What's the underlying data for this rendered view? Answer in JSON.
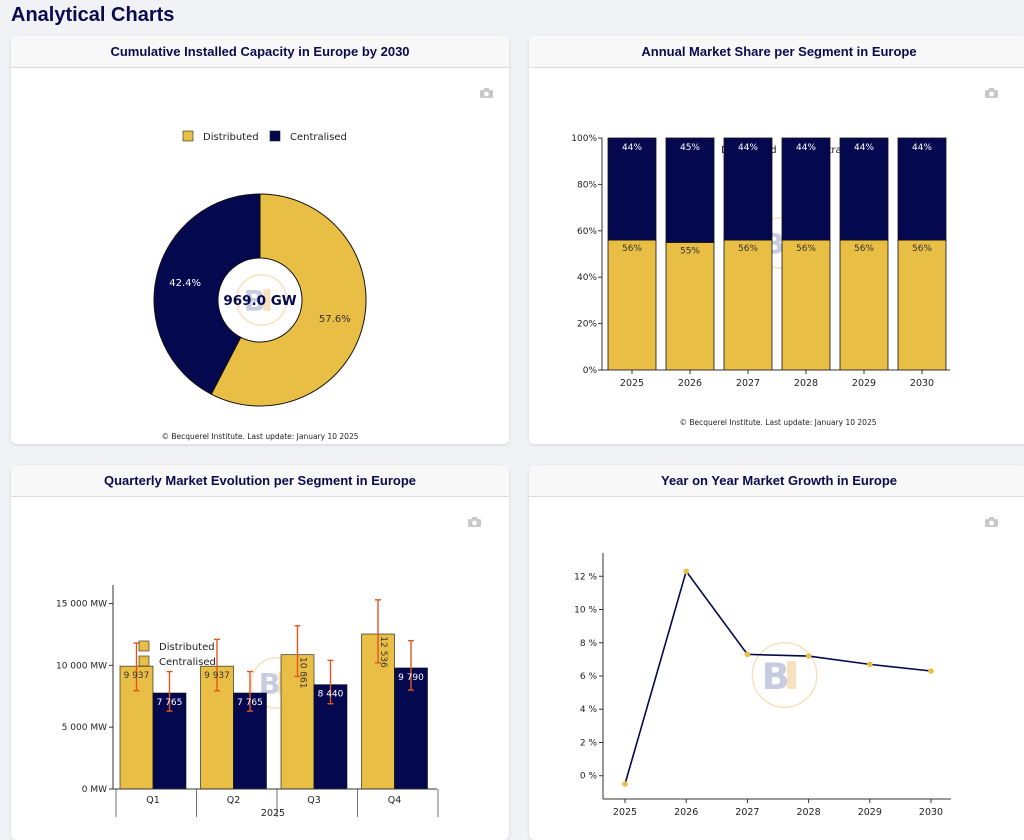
{
  "page": {
    "title": "Analytical Charts"
  },
  "colors": {
    "distributed": "#e9be45",
    "centralised": "#04084e",
    "axis": "#333333",
    "error": "#e0561e",
    "line": "#04084e",
    "point": "#e9be45",
    "logo_blue": "#9aa3c9",
    "logo_gold": "#f0c98a"
  },
  "icons": {
    "camera": "camera-icon",
    "logo": "becquerel-logo-watermark"
  },
  "chart_data": [
    {
      "id": "donut",
      "type": "pie",
      "title": "Cumulative Installed Capacity in Europe by 2030",
      "center_label": "969.0 GW",
      "legend": [
        "Distributed",
        "Centralised"
      ],
      "slices": [
        {
          "name": "Distributed",
          "value": 57.6,
          "label": "57.6%"
        },
        {
          "name": "Centralised",
          "value": 42.4,
          "label": "42.4%"
        }
      ],
      "footer": "© Becquerel Institute. Last update: January 10 2025"
    },
    {
      "id": "share",
      "type": "bar",
      "stacked": true,
      "title": "Annual Market Share per Segment in Europe",
      "legend": [
        "Distributed",
        "Centralised"
      ],
      "categories": [
        "2025",
        "2026",
        "2027",
        "2028",
        "2029",
        "2030"
      ],
      "series": [
        {
          "name": "Distributed",
          "values": [
            56,
            55,
            56,
            56,
            56,
            56
          ],
          "labels": [
            "56%",
            "55%",
            "56%",
            "56%",
            "56%",
            "56%"
          ]
        },
        {
          "name": "Centralised",
          "values": [
            44,
            45,
            44,
            44,
            44,
            44
          ],
          "labels": [
            "44%",
            "45%",
            "44%",
            "44%",
            "44%",
            "44%"
          ]
        }
      ],
      "yticks": [
        "0%",
        "20%",
        "40%",
        "60%",
        "80%",
        "100%"
      ],
      "ylim": [
        0,
        100
      ],
      "footer": "© Becquerel Institute. Last update: January 10 2025"
    },
    {
      "id": "quarterly",
      "type": "bar",
      "title": "Quarterly Market Evolution per Segment in Europe",
      "legend": [
        "Distributed",
        "Centralised"
      ],
      "categories": [
        "Q1",
        "Q2",
        "Q3",
        "Q4"
      ],
      "xlabel": "2025",
      "series": [
        {
          "name": "Distributed",
          "values": [
            9937,
            9937,
            10861,
            12536
          ],
          "labels": [
            "9 937",
            "9 937",
            "10 861",
            "12 536"
          ],
          "error_low": [
            7950,
            7950,
            9100,
            10200
          ],
          "error_high": [
            11800,
            12100,
            13200,
            15300
          ]
        },
        {
          "name": "Centralised",
          "values": [
            7765,
            7765,
            8440,
            9790
          ],
          "labels": [
            "7 765",
            "7 765",
            "8 440",
            "9 790"
          ],
          "error_low": [
            6300,
            6300,
            6900,
            8000
          ],
          "error_high": [
            9500,
            9500,
            10400,
            12000
          ]
        }
      ],
      "yticks": [
        "0 MW",
        "5 000 MW",
        "10 000 MW",
        "15 000 MW"
      ],
      "ylim": [
        0,
        16500
      ]
    },
    {
      "id": "growth",
      "type": "line",
      "title": "Year on Year Market Growth in Europe",
      "x": [
        "2025",
        "2026",
        "2027",
        "2028",
        "2029",
        "2030"
      ],
      "y": [
        -0.5,
        12.3,
        7.3,
        7.2,
        6.7,
        6.3
      ],
      "yticks": [
        "0 %",
        "2 %",
        "4 %",
        "6 %",
        "8 %",
        "10 %",
        "12 %"
      ],
      "ylim": [
        -1.4,
        13.4
      ]
    }
  ]
}
